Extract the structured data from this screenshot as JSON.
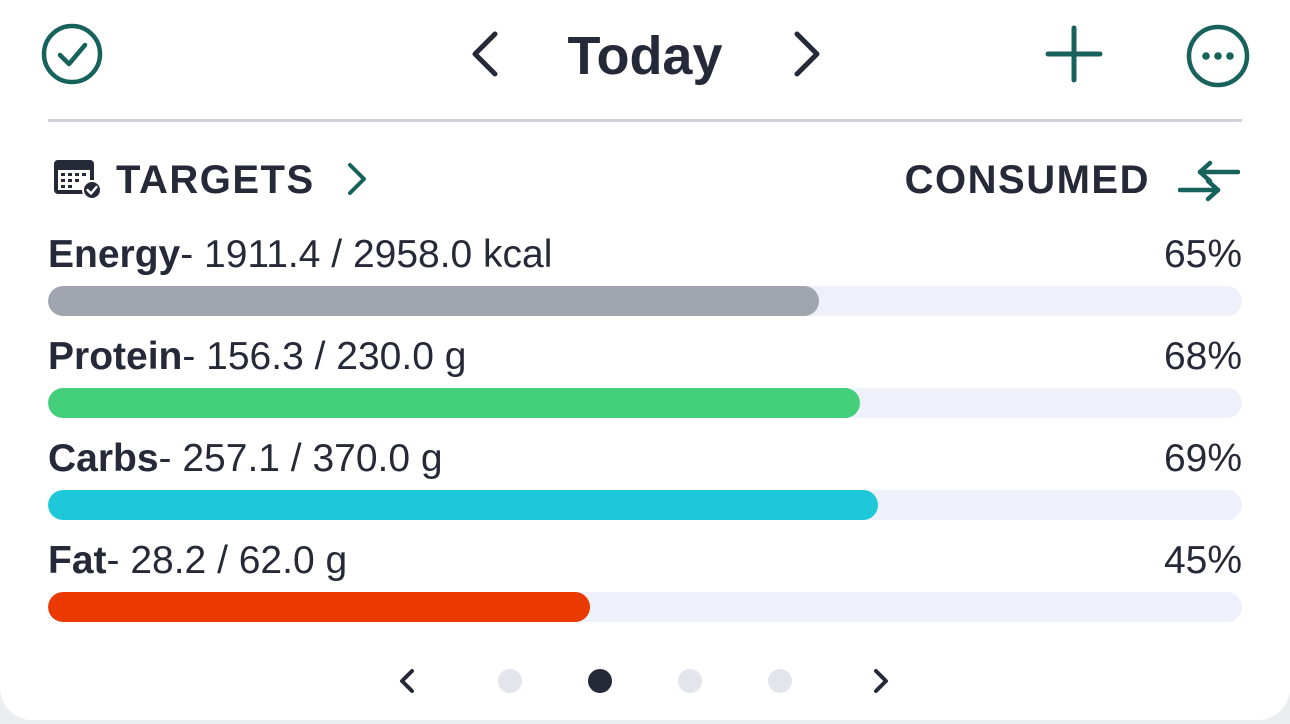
{
  "header": {
    "title": "Today",
    "icons": {
      "complete": "check-circle-icon",
      "prev": "chevron-left-icon",
      "next": "chevron-right-icon",
      "add": "plus-icon",
      "more": "more-circle-icon"
    }
  },
  "targets": {
    "label": "TARGETS",
    "icon": "calendar-check-icon",
    "mode_label": "CONSUMED",
    "swap_icon": "swap-arrows-icon"
  },
  "nutrients": [
    {
      "name": "Energy",
      "value": "- 1911.4 / 2958.0 kcal",
      "percent": "65%",
      "fill": 0.646,
      "color": "#a1a5b0"
    },
    {
      "name": "Protein",
      "value": "- 156.3 / 230.0 g",
      "percent": "68%",
      "fill": 0.68,
      "color": "#44d07b"
    },
    {
      "name": "Carbs",
      "value": "- 257.1 / 370.0 g",
      "percent": "69%",
      "fill": 0.695,
      "color": "#1ec8d9"
    },
    {
      "name": "Fat",
      "value": "- 28.2 / 62.0 g",
      "percent": "45%",
      "fill": 0.454,
      "color": "#ea3a02"
    }
  ],
  "pager": {
    "pages": 4,
    "active_page": 2
  },
  "colors": {
    "accent": "#17625a",
    "text": "#262a38"
  }
}
